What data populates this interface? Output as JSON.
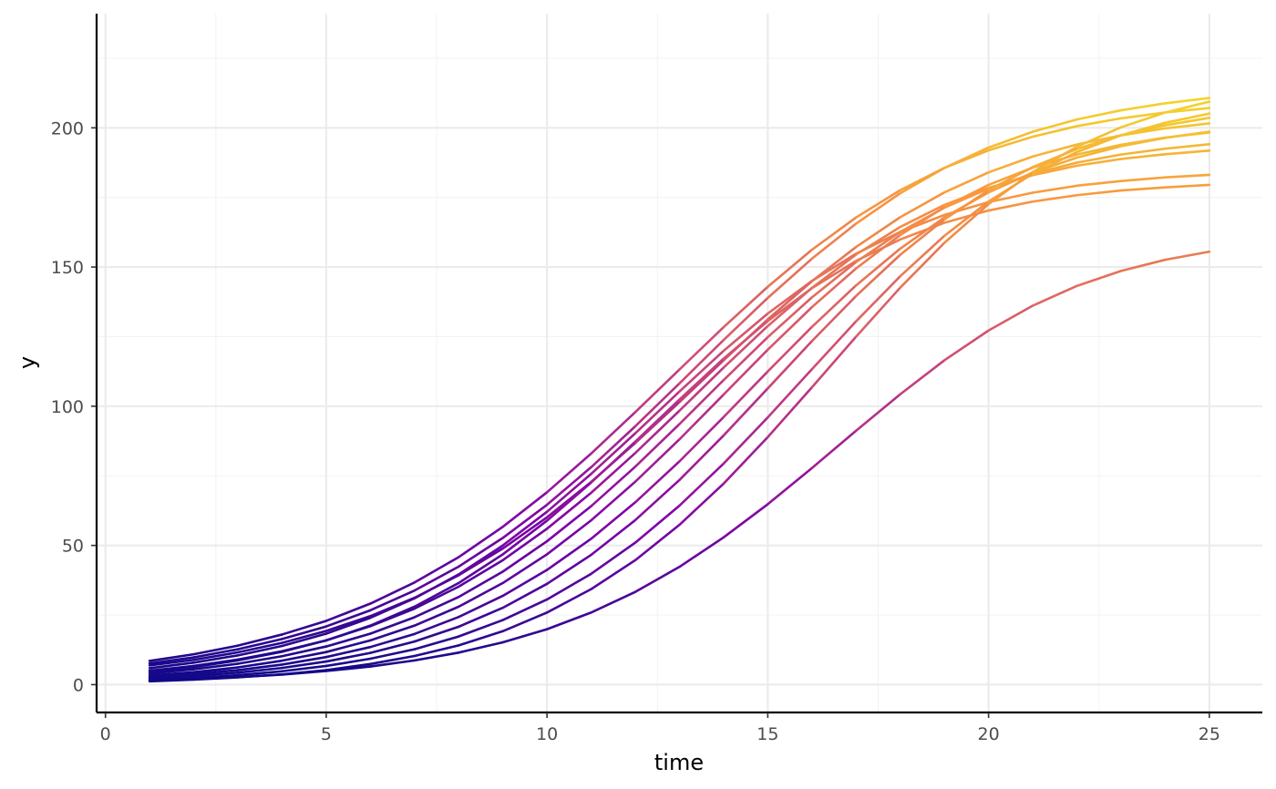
{
  "chart_data": {
    "type": "line",
    "title": "",
    "xlabel": "time",
    "ylabel": "y",
    "xlim": [
      -0.2,
      26.2
    ],
    "ylim": [
      -10,
      241
    ],
    "x_ticks": [
      0,
      5,
      10,
      15,
      20,
      25
    ],
    "y_ticks": [
      0,
      50,
      100,
      150,
      200
    ],
    "grid": true,
    "legend": "none",
    "color_scale": [
      "#0d0887",
      "#7e03a8",
      "#cc4778",
      "#f89540",
      "#f0f921"
    ],
    "color_range": [
      0,
      231
    ],
    "x": [
      1,
      2,
      3,
      4,
      5,
      6,
      7,
      8,
      9,
      10,
      11,
      12,
      13,
      14,
      15,
      16,
      17,
      18,
      19,
      20,
      21,
      22,
      23,
      24,
      25
    ],
    "series": [
      {
        "values": [
          8.5,
          10.9,
          14.0,
          18.0,
          22.9,
          29.1,
          36.7,
          45.8,
          56.7,
          69.1,
          83.0,
          97.9,
          113.2,
          128.4,
          142.9,
          156.2,
          167.8,
          177.6,
          185.6,
          191.9,
          196.8,
          200.6,
          203.4,
          205.5,
          207.1
        ]
      },
      {
        "values": [
          7.6,
          9.8,
          12.7,
          16.4,
          20.9,
          26.7,
          33.8,
          42.4,
          52.7,
          64.6,
          78.1,
          92.8,
          108.2,
          123.8,
          138.9,
          153.0,
          165.6,
          176.5,
          185.6,
          192.9,
          198.6,
          203.0,
          206.3,
          208.8,
          210.7
        ]
      },
      {
        "values": [
          6.9,
          8.9,
          11.6,
          15.0,
          19.3,
          24.6,
          31.2,
          39.3,
          48.9,
          60.1,
          72.8,
          86.8,
          101.5,
          116.5,
          131.2,
          144.9,
          157.2,
          167.9,
          176.8,
          184.0,
          189.7,
          194.0,
          197.3,
          199.8,
          201.6
        ]
      },
      {
        "values": [
          5.9,
          7.9,
          10.5,
          13.9,
          18.3,
          24.0,
          31.0,
          39.6,
          50.0,
          62.1,
          75.7,
          90.3,
          105.3,
          119.9,
          133.3,
          145.0,
          154.8,
          162.6,
          168.7,
          173.3,
          176.7,
          179.2,
          180.9,
          182.2,
          183.1
        ]
      },
      {
        "values": [
          5.0,
          6.7,
          9.0,
          12.0,
          15.9,
          21.0,
          27.3,
          35.2,
          44.7,
          56.0,
          68.9,
          83.2,
          98.4,
          113.9,
          128.8,
          142.5,
          154.5,
          164.4,
          172.3,
          178.4,
          183.0,
          186.4,
          188.8,
          190.5,
          191.8
        ]
      },
      {
        "values": [
          4.6,
          6.3,
          8.7,
          11.8,
          15.9,
          21.2,
          28.0,
          36.5,
          46.8,
          58.9,
          72.6,
          87.3,
          102.4,
          117.1,
          130.6,
          142.4,
          152.2,
          159.9,
          165.9,
          170.3,
          173.5,
          175.8,
          177.5,
          178.6,
          179.5
        ]
      },
      {
        "values": [
          4.0,
          5.5,
          7.5,
          10.2,
          13.7,
          18.3,
          24.2,
          31.5,
          40.6,
          51.5,
          64.1,
          78.3,
          93.6,
          109.4,
          124.8,
          139.1,
          151.8,
          162.6,
          171.3,
          178.2,
          183.5,
          187.5,
          190.4,
          192.5,
          194.1
        ]
      },
      {
        "values": [
          3.3,
          4.5,
          6.2,
          8.6,
          11.7,
          15.9,
          21.2,
          28.0,
          36.5,
          46.8,
          59.0,
          72.9,
          88.1,
          104.2,
          120.3,
          135.6,
          149.5,
          161.5,
          171.5,
          179.5,
          185.7,
          190.4,
          193.9,
          196.5,
          198.3
        ]
      },
      {
        "values": [
          2.7,
          3.8,
          5.2,
          7.2,
          9.9,
          13.5,
          18.2,
          24.3,
          31.9,
          41.2,
          52.4,
          65.5,
          80.2,
          96.1,
          112.5,
          128.5,
          143.4,
          156.6,
          167.8,
          176.8,
          183.9,
          189.3,
          193.4,
          196.4,
          198.6
        ]
      },
      {
        "values": [
          2.2,
          3.1,
          4.3,
          6.0,
          8.3,
          11.4,
          15.5,
          20.8,
          27.6,
          36.2,
          46.6,
          59.1,
          73.5,
          89.5,
          106.4,
          123.4,
          139.6,
          154.4,
          167.1,
          177.6,
          185.9,
          192.4,
          197.3,
          200.9,
          203.6
        ]
      },
      {
        "values": [
          1.7,
          2.4,
          3.4,
          4.8,
          6.7,
          9.3,
          12.7,
          17.3,
          23.2,
          30.6,
          39.8,
          51.0,
          64.3,
          79.4,
          96.0,
          113.3,
          130.5,
          146.7,
          161.2,
          173.5,
          183.5,
          191.3,
          197.3,
          201.8,
          205.1
        ]
      },
      {
        "values": [
          1.2,
          1.8,
          2.6,
          3.7,
          5.2,
          7.4,
          10.3,
          14.1,
          19.2,
          25.9,
          34.3,
          44.7,
          57.4,
          72.2,
          88.9,
          106.8,
          125.0,
          142.6,
          158.7,
          172.6,
          184.1,
          193.2,
          200.2,
          205.5,
          209.4
        ]
      },
      {
        "values": [
          1.5,
          2.0,
          2.7,
          3.6,
          4.9,
          6.5,
          8.7,
          11.5,
          15.2,
          19.9,
          25.9,
          33.3,
          42.3,
          52.9,
          64.8,
          77.8,
          91.2,
          104.3,
          116.5,
          127.2,
          136.1,
          143.2,
          148.6,
          152.6,
          155.5
        ]
      }
    ]
  },
  "colors": {
    "grid_major": "#ebebeb",
    "grid_minor": "#f3f3f3",
    "axis_line": "#000000"
  }
}
